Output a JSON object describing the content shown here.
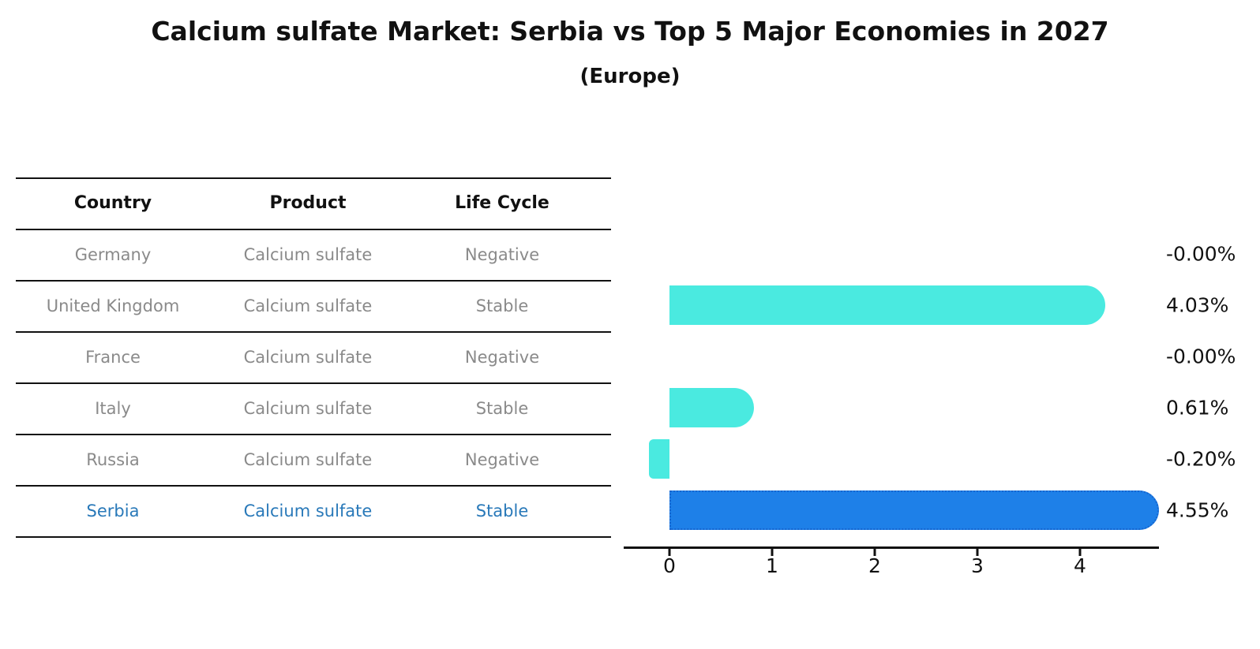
{
  "title": "Calcium sulfate Market: Serbia vs Top 5 Major Economies in 2027",
  "subtitle": "(Europe)",
  "table": {
    "headers": [
      "Country",
      "Product",
      "Life Cycle"
    ],
    "rows": [
      {
        "country": "Germany",
        "product": "Calcium sulfate",
        "life_cycle": "Negative",
        "highlight": false
      },
      {
        "country": "United Kingdom",
        "product": "Calcium sulfate",
        "life_cycle": "Stable",
        "highlight": false
      },
      {
        "country": "France",
        "product": "Calcium sulfate",
        "life_cycle": "Negative",
        "highlight": false
      },
      {
        "country": "Italy",
        "product": "Calcium sulfate",
        "life_cycle": "Stable",
        "highlight": false
      },
      {
        "country": "Russia",
        "product": "Calcium sulfate",
        "life_cycle": "Negative",
        "highlight": false
      },
      {
        "country": "Serbia",
        "product": "Calcium sulfate",
        "life_cycle": "Stable",
        "highlight": true
      }
    ]
  },
  "chart_data": {
    "type": "bar",
    "orientation": "horizontal",
    "title": "Calcium sulfate Market: Serbia vs Top 5 Major Economies in 2027",
    "subtitle": "(Europe)",
    "categories": [
      "Germany",
      "United Kingdom",
      "France",
      "Italy",
      "Russia",
      "Serbia"
    ],
    "values": [
      -0.0,
      4.03,
      -0.0,
      0.61,
      -0.2,
      4.55
    ],
    "value_labels": [
      "-0.00%",
      "4.03%",
      "-0.00%",
      "0.61%",
      "-0.20%",
      "4.55%"
    ],
    "xlabel": "",
    "ylabel": "",
    "xticks": [
      "0",
      "1",
      "2",
      "3",
      "4"
    ],
    "xlim": [
      -0.45,
      4.77
    ],
    "grid": false,
    "legend": "none",
    "highlight_category": "Serbia"
  },
  "colors": {
    "bar": "#4AEAE0",
    "highlight_bar": "#1E80E8",
    "highlight_border": "#1565CF",
    "table_text": "#8A8A8A",
    "highlight_text": "#2979B9",
    "header_text": "#111111",
    "axis": "#111111",
    "value_text": "#111111"
  }
}
